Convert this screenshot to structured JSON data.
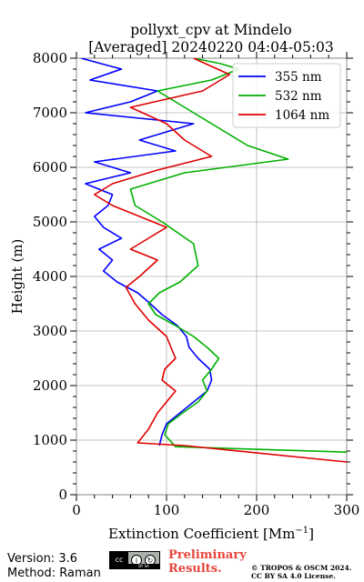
{
  "chart_data": {
    "type": "line",
    "title": "pollyxt_cpv at Mindelo",
    "subtitle": "[Averaged] 20240220 04:04-05:03",
    "xlabel": "Extinction Coefficient [Mm⁻¹]",
    "ylabel": "Height (m)",
    "xlim": [
      0,
      300
    ],
    "ylim": [
      0,
      8000
    ],
    "xticks": [
      0,
      100,
      200,
      300
    ],
    "yticks": [
      0,
      1000,
      2000,
      3000,
      4000,
      5000,
      6000,
      7000,
      8000
    ],
    "grid": true,
    "legend_position": "top-right",
    "series": [
      {
        "name": "355 nm",
        "color": "#0000ff",
        "x": [
          92,
          95,
          100,
          115,
          130,
          145,
          150,
          148,
          135,
          125,
          122,
          112,
          95,
          82,
          68,
          45,
          30,
          40,
          25,
          50,
          30,
          20,
          35,
          40,
          10,
          60,
          20,
          110,
          70,
          130,
          10,
          60,
          90,
          15,
          50,
          5
        ],
        "y": [
          900,
          1100,
          1300,
          1500,
          1700,
          1900,
          2100,
          2300,
          2500,
          2700,
          2900,
          3100,
          3300,
          3500,
          3700,
          3900,
          4100,
          4300,
          4500,
          4700,
          4900,
          5100,
          5300,
          5500,
          5700,
          5900,
          6100,
          6300,
          6500,
          6800,
          7000,
          7200,
          7400,
          7600,
          7800,
          8000
        ]
      },
      {
        "name": "532 nm",
        "color": "#00b000",
        "x": [
          300,
          110,
          98,
          102,
          118,
          135,
          145,
          140,
          150,
          158,
          145,
          130,
          110,
          88,
          80,
          92,
          115,
          135,
          130,
          95,
          65,
          60,
          120,
          235,
          190,
          160,
          130,
          110,
          90,
          150,
          180,
          160,
          130
        ],
        "y": [
          780,
          880,
          1100,
          1300,
          1500,
          1700,
          1900,
          2100,
          2300,
          2500,
          2700,
          2900,
          3100,
          3300,
          3500,
          3700,
          3900,
          4200,
          4600,
          5000,
          5300,
          5600,
          5900,
          6150,
          6400,
          6700,
          7000,
          7200,
          7400,
          7600,
          7800,
          7900,
          8000
        ]
      },
      {
        "name": "1064 nm",
        "color": "#e00000",
        "x": [
          300,
          120,
          68,
          80,
          90,
          100,
          110,
          95,
          98,
          110,
          105,
          100,
          80,
          65,
          55,
          70,
          90,
          60,
          80,
          100,
          70,
          40,
          20,
          40,
          90,
          150,
          120,
          100,
          60,
          140,
          170,
          130
        ],
        "y": [
          600,
          900,
          950,
          1200,
          1500,
          1700,
          1900,
          2100,
          2300,
          2500,
          2700,
          2900,
          3200,
          3500,
          3800,
          4000,
          4300,
          4500,
          4700,
          4900,
          5100,
          5300,
          5500,
          5700,
          5950,
          6200,
          6500,
          6800,
          7100,
          7400,
          7700,
          8000
        ]
      }
    ]
  },
  "footer": {
    "version": "Version: 3.6",
    "method": "Method: Raman",
    "license_badge": "cc",
    "license_badge_text": "BY SA",
    "preliminary_line1": "Preliminary",
    "preliminary_line2": "Results.",
    "copyright_line1": "© TROPOS & OSCM 2024.",
    "copyright_line2": "CC BY SA 4.0 License."
  }
}
